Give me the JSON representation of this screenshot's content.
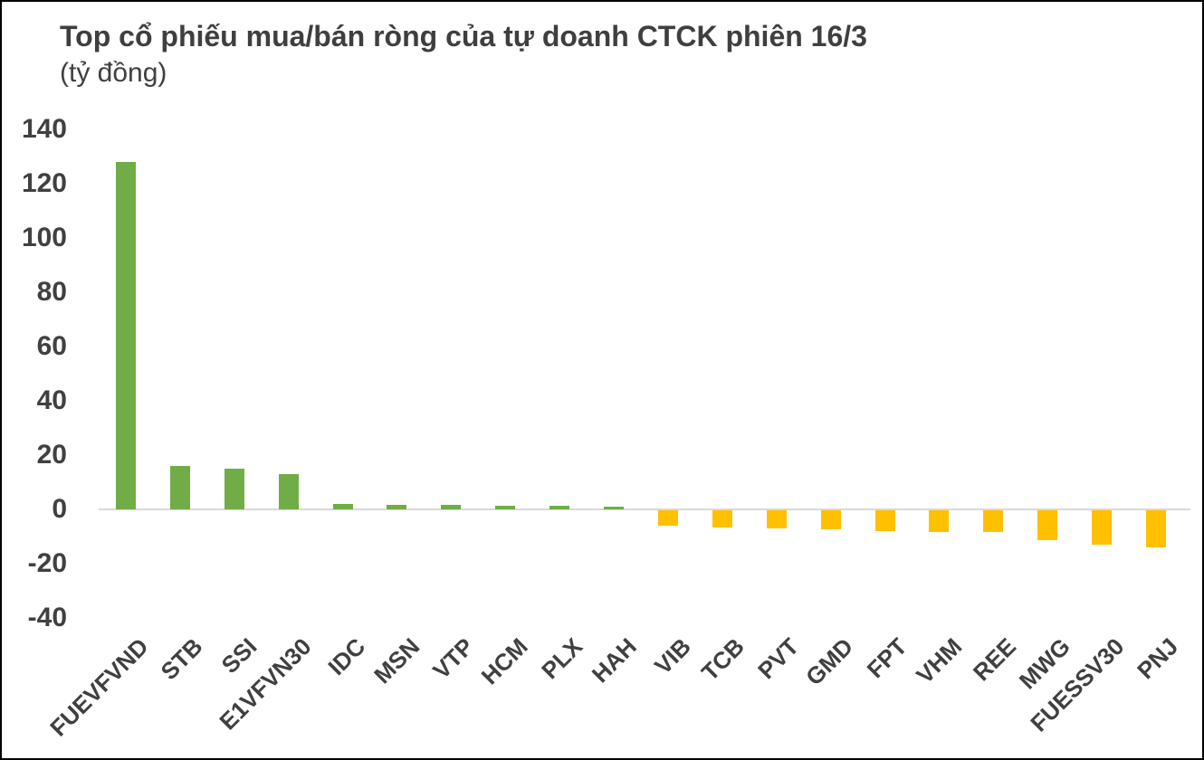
{
  "chart_data": {
    "type": "bar",
    "title": "Top cổ phiếu mua/bán ròng của tự doanh CTCK phiên 16/3",
    "unit_label": "(tỷ đồng)",
    "categories": [
      "FUEVFVND",
      "STB",
      "SSI",
      "E1VFVN30",
      "IDC",
      "MSN",
      "VTP",
      "HCM",
      "PLX",
      "HAH",
      "VIB",
      "TCB",
      "PVT",
      "GMD",
      "FPT",
      "VHM",
      "REE",
      "MWG",
      "FUESSV30",
      "PNJ"
    ],
    "values": [
      128,
      16,
      15,
      13,
      2.0,
      1.7,
      1.6,
      1.3,
      1.2,
      0.9,
      -5.8,
      -6.2,
      -6.8,
      -7.1,
      -7.6,
      -7.9,
      -8.1,
      -11.0,
      -12.7,
      -13.7
    ],
    "y_ticks": [
      140,
      120,
      100,
      80,
      60,
      40,
      20,
      0,
      -20,
      -40
    ],
    "ylim": [
      -40,
      140
    ],
    "grid": false,
    "legend": false,
    "xlabel": "",
    "ylabel": "",
    "colors": {
      "positive": "#70AD47",
      "negative": "#FFC000",
      "axis_line": "#D9D9D9",
      "text": "#404040",
      "title_text": "#3F3F3F",
      "border": "#000000"
    }
  }
}
